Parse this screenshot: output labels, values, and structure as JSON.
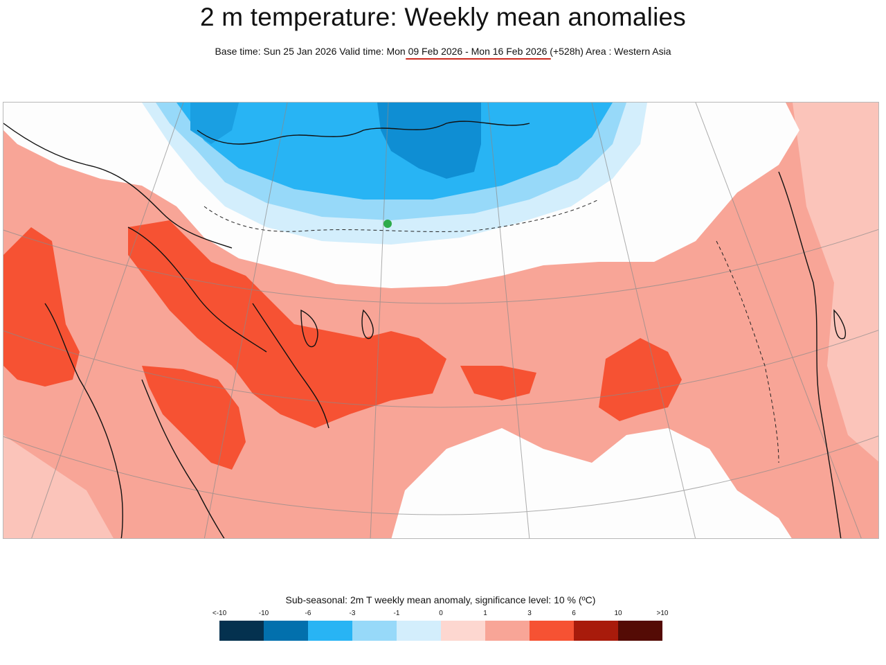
{
  "header": {
    "title": "2 m temperature: Weekly mean anomalies",
    "subtitle": "Base time: Sun 25 Jan 2026 Valid time: Mon 09 Feb 2026 - Mon 16 Feb 2026 (+528h) Area : Western Asia",
    "highlight_color": "#cc2a1e"
  },
  "map": {
    "area": "Western Asia",
    "marker_color": "#2eab4a"
  },
  "legend": {
    "title": "Sub-seasonal: 2m T weekly mean anomaly, significance level: 10 % (ºC)",
    "tick_labels": [
      "<-10",
      "-10",
      "-6",
      "-3",
      "-1",
      "0",
      "1",
      "3",
      "6",
      "10",
      ">10"
    ],
    "colors": [
      "#04314f",
      "#0270ad",
      "#28b4f4",
      "#97d9f9",
      "#d3eefc",
      "#fdd7d0",
      "#f8a597",
      "#f65233",
      "#a81b0b",
      "#540b05"
    ]
  }
}
